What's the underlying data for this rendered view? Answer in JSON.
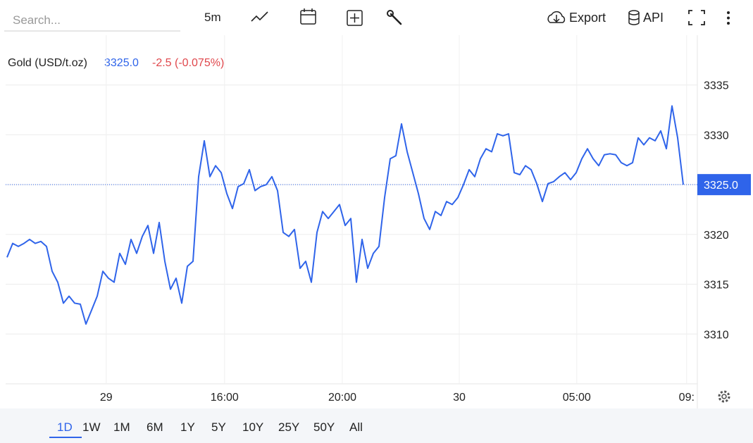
{
  "toolbar": {
    "search_placeholder": "Search...",
    "interval": "5m",
    "export": "Export",
    "api": "API"
  },
  "legend": {
    "symbol": "Gold (USD/t.oz)",
    "price": "3325.0",
    "change": "-2.5 (-0.075%)"
  },
  "chart_data": {
    "type": "line",
    "grid": true,
    "color": "#2f64ea",
    "series": [
      {
        "name": "Gold (USD/t.oz)",
        "color": "#2f64ea",
        "values": [
          3317.7,
          3319.1,
          3318.8,
          3319.1,
          3319.5,
          3319.1,
          3319.3,
          3318.8,
          3316.3,
          3315.2,
          3313.1,
          3313.8,
          3313.1,
          3313.0,
          3311.0,
          3312.4,
          3313.8,
          3316.3,
          3315.6,
          3315.2,
          3318.1,
          3317.0,
          3319.5,
          3318.1,
          3319.8,
          3320.9,
          3318.1,
          3321.2,
          3317.3,
          3314.5,
          3315.6,
          3313.1,
          3316.8,
          3317.3,
          3325.8,
          3329.4,
          3325.8,
          3326.9,
          3326.2,
          3324.1,
          3322.6,
          3324.8,
          3325.1,
          3326.5,
          3324.4,
          3324.8,
          3325.0,
          3325.8,
          3324.4,
          3320.2,
          3319.8,
          3320.5,
          3316.6,
          3317.3,
          3315.2,
          3320.2,
          3322.3,
          3321.6,
          3322.3,
          3323.0,
          3320.9,
          3321.6,
          3315.2,
          3319.5,
          3316.6,
          3318.1,
          3318.8,
          3323.7,
          3327.6,
          3327.9,
          3331.1,
          3328.3,
          3326.2,
          3324.1,
          3321.6,
          3320.5,
          3322.3,
          3321.9,
          3323.3,
          3323.0,
          3323.7,
          3325.0,
          3326.5,
          3325.8,
          3327.6,
          3328.6,
          3328.3,
          3330.1,
          3329.9,
          3330.1,
          3326.2,
          3326.0,
          3326.9,
          3326.5,
          3325.1,
          3323.3,
          3325.1,
          3325.3,
          3325.8,
          3326.2,
          3325.5,
          3326.2,
          3327.6,
          3328.6,
          3327.6,
          3326.9,
          3328.0,
          3328.1,
          3328.0,
          3327.2,
          3326.9,
          3327.2,
          3329.7,
          3329.0,
          3329.7,
          3329.4,
          3330.4,
          3328.6,
          3332.9,
          3329.7,
          3325.0
        ]
      }
    ],
    "current_price": {
      "value": 3325,
      "label": "3325.0"
    },
    "xlim": [
      -0.25,
      122.5
    ],
    "xticks": [
      {
        "value": 17.6,
        "label": "29"
      },
      {
        "value": 38.6,
        "label": "16:00"
      },
      {
        "value": 59.5,
        "label": "20:00"
      },
      {
        "value": 80.25,
        "label": "30"
      },
      {
        "value": 101.1,
        "label": "05:00"
      },
      {
        "value": 120.6,
        "label": "09:"
      }
    ],
    "ylim": [
      3305,
      3340
    ],
    "yticks": [
      3310,
      3315,
      3320,
      3325,
      3330,
      3335
    ]
  },
  "ranges": [
    "1D",
    "1W",
    "1M",
    "6M",
    "1Y",
    "5Y",
    "10Y",
    "25Y",
    "50Y",
    "All"
  ],
  "active_range": "1D"
}
